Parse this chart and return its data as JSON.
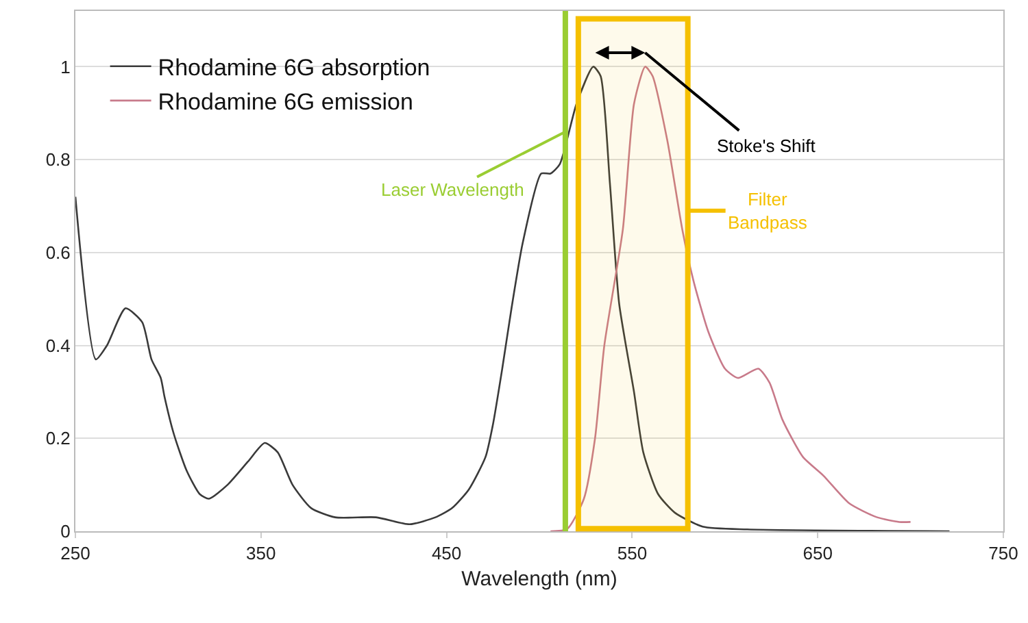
{
  "chart_data": {
    "type": "line",
    "xlabel": "Wavelength (nm)",
    "xlim": [
      250,
      750
    ],
    "xticks": [
      250,
      350,
      450,
      550,
      650,
      750
    ],
    "ylim": [
      0,
      1.12
    ],
    "yticks": [
      0,
      0.2,
      0.4,
      0.6,
      0.8,
      1
    ],
    "grid": "y",
    "legend": "top left",
    "marker": "none",
    "line_style": "solid",
    "series": [
      {
        "name": "Rhodamine 6G absorption",
        "color": "#3a3a3a",
        "x": [
          250,
          261,
          267,
          277,
          286,
          291,
          296,
          298,
          303,
          310,
          317,
          322,
          332,
          343,
          352,
          359,
          367,
          377,
          390,
          412,
          430,
          444,
          453,
          462,
          471,
          475,
          480,
          485,
          491,
          501,
          506,
          511,
          520,
          529,
          533,
          538,
          543,
          551,
          556,
          564,
          573,
          588,
          612,
          721
        ],
        "values": [
          0.72,
          0.37,
          0.4,
          0.48,
          0.45,
          0.37,
          0.33,
          0.29,
          0.21,
          0.13,
          0.08,
          0.07,
          0.1,
          0.15,
          0.19,
          0.17,
          0.1,
          0.05,
          0.03,
          0.03,
          0.015,
          0.03,
          0.05,
          0.09,
          0.16,
          0.23,
          0.35,
          0.48,
          0.62,
          0.77,
          0.77,
          0.79,
          0.92,
          1.0,
          0.98,
          0.75,
          0.49,
          0.3,
          0.17,
          0.08,
          0.04,
          0.01,
          0.004,
          0
        ]
      },
      {
        "name": "Rhodamine 6G emission",
        "color": "#c87a8a",
        "x": [
          506,
          515,
          524,
          530,
          535,
          545,
          551,
          557,
          561,
          569,
          577,
          583,
          591,
          600,
          607,
          618,
          624,
          631,
          642,
          653,
          667,
          682,
          694,
          700
        ],
        "values": [
          0,
          0.005,
          0.07,
          0.2,
          0.4,
          0.65,
          0.92,
          1.0,
          0.98,
          0.84,
          0.65,
          0.54,
          0.43,
          0.35,
          0.33,
          0.35,
          0.32,
          0.24,
          0.16,
          0.12,
          0.06,
          0.03,
          0.02,
          0.02
        ]
      }
    ],
    "ref_lines": [
      {
        "axis": "x",
        "value": 514,
        "label": "Laser Wavelength",
        "color": "#9acd32"
      }
    ],
    "bands": [
      {
        "axis": "x",
        "from": 521,
        "to": 580,
        "label": "Filter Bandpass",
        "color": "#f5c000"
      }
    ],
    "annotations": [
      "Stoke's Shift"
    ]
  }
}
